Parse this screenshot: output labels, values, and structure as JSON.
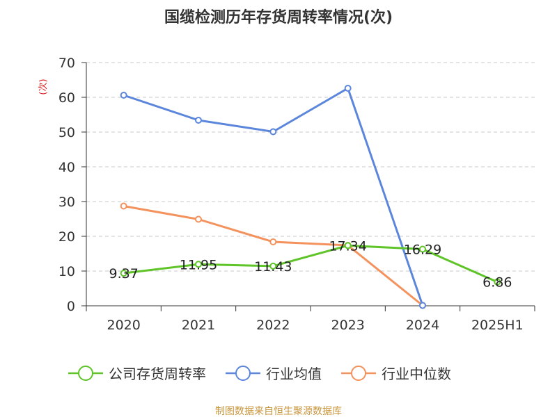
{
  "chart_data": {
    "type": "line",
    "title": "国缆检测历年存货周转率情况(次)",
    "ylabel": "(次)",
    "xlabel": "",
    "categories": [
      "2020",
      "2021",
      "2022",
      "2023",
      "2024",
      "2025H1"
    ],
    "ylim": [
      0,
      70
    ],
    "yticks": [
      0,
      10,
      20,
      30,
      40,
      50,
      60,
      70
    ],
    "grid": true,
    "legend_position": "bottom",
    "series": [
      {
        "name": "公司存货周转率",
        "color": "#5ec428",
        "values": [
          9.37,
          11.95,
          11.43,
          17.34,
          16.29,
          6.86
        ],
        "labels": [
          "9.37",
          "11.95",
          "11.43",
          "17.34",
          "16.29",
          "6.86"
        ]
      },
      {
        "name": "行业均值",
        "color": "#5b86db",
        "values": [
          60.6,
          53.4,
          50.1,
          62.6,
          0.1,
          null
        ]
      },
      {
        "name": "行业中位数",
        "color": "#f4925e",
        "values": [
          28.7,
          24.9,
          18.4,
          17.4,
          0.1,
          null
        ]
      }
    ],
    "source": "制图数据来自恒生聚源数据库"
  }
}
